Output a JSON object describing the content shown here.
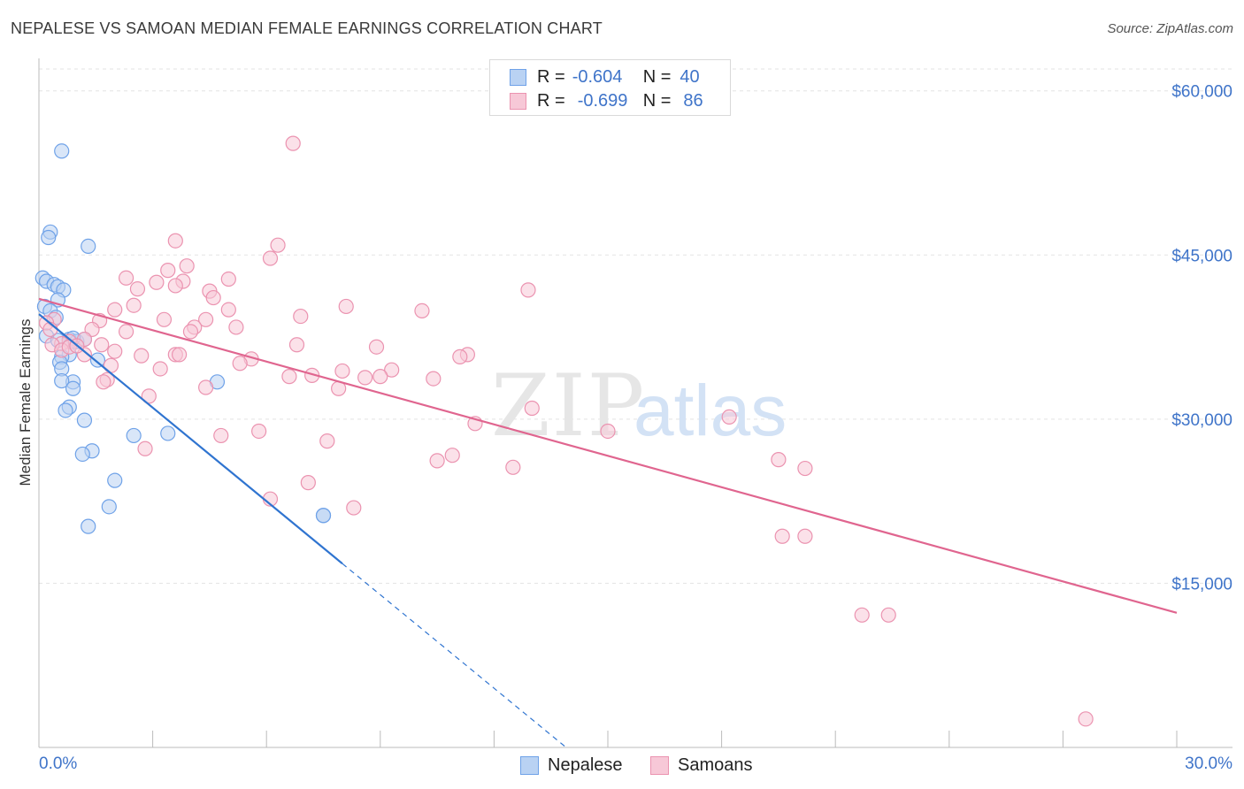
{
  "title": "NEPALESE VS SAMOAN MEDIAN FEMALE EARNINGS CORRELATION CHART",
  "source": "Source: ZipAtlas.com",
  "colors": {
    "nepalese": "#6fa2e8",
    "nepalese_fill": "#b9d2f3",
    "nepalese_line": "#2f74d0",
    "samoans": "#eb93b0",
    "samoans_fill": "#f7c8d7",
    "samoans_line": "#e0658f",
    "axis_text": "#3f74c9"
  },
  "legend": {
    "r_label": "R =",
    "n_label": "N =",
    "nepalese": {
      "r": "-0.604",
      "n": "40"
    },
    "samoans": {
      "r": "-0.699",
      "n": "86"
    }
  },
  "bottom_legend": {
    "nepalese": "Nepalese",
    "samoans": "Samoans"
  },
  "chart_data": {
    "type": "scatter",
    "title": "NEPALESE VS SAMOAN MEDIAN FEMALE EARNINGS CORRELATION CHART",
    "xlabel": "",
    "ylabel": "Median Female Earnings",
    "xlim": [
      0,
      30
    ],
    "ylim": [
      0,
      62000
    ],
    "x_tick_labels": {
      "0": "0.0%",
      "30": "30.0%"
    },
    "y_ticks": [
      15000,
      30000,
      45000,
      60000
    ],
    "y_tick_labels": [
      "$15,000",
      "$30,000",
      "$45,000",
      "$60,000"
    ],
    "grid": true,
    "legend_position": "top-center",
    "series": [
      {
        "name": "Nepalese",
        "points": [
          [
            0.6,
            54500
          ],
          [
            0.3,
            47100
          ],
          [
            0.25,
            46600
          ],
          [
            1.3,
            45800
          ],
          [
            0.1,
            42900
          ],
          [
            0.2,
            42600
          ],
          [
            0.4,
            42300
          ],
          [
            0.5,
            42100
          ],
          [
            0.65,
            41800
          ],
          [
            0.5,
            40900
          ],
          [
            0.15,
            40300
          ],
          [
            0.3,
            39900
          ],
          [
            0.45,
            39300
          ],
          [
            0.2,
            37600
          ],
          [
            0.5,
            37200
          ],
          [
            0.8,
            37300
          ],
          [
            1.0,
            37100
          ],
          [
            1.2,
            37300
          ],
          [
            0.8,
            35900
          ],
          [
            0.6,
            35700
          ],
          [
            0.55,
            35200
          ],
          [
            1.55,
            35400
          ],
          [
            0.6,
            34600
          ],
          [
            0.9,
            33400
          ],
          [
            0.6,
            33500
          ],
          [
            4.7,
            33400
          ],
          [
            0.9,
            32800
          ],
          [
            0.8,
            31100
          ],
          [
            0.7,
            30800
          ],
          [
            1.2,
            29900
          ],
          [
            2.5,
            28500
          ],
          [
            3.4,
            28700
          ],
          [
            1.4,
            27100
          ],
          [
            1.15,
            26800
          ],
          [
            2.0,
            24400
          ],
          [
            1.85,
            22000
          ],
          [
            1.3,
            20200
          ],
          [
            7.5,
            21200
          ],
          [
            7.5,
            21200
          ],
          [
            0.9,
            37400
          ]
        ],
        "trend": {
          "x": [
            0,
            8.0
          ],
          "y": [
            39600,
            16800
          ]
        },
        "trend_dashed": {
          "x": [
            8.0,
            13.9
          ],
          "y": [
            16800,
            0
          ]
        }
      },
      {
        "name": "Samoans",
        "points": [
          [
            6.7,
            55200
          ],
          [
            3.6,
            46300
          ],
          [
            6.3,
            45900
          ],
          [
            6.1,
            44700
          ],
          [
            3.9,
            44000
          ],
          [
            3.4,
            43600
          ],
          [
            2.3,
            42900
          ],
          [
            5.0,
            42800
          ],
          [
            3.8,
            42600
          ],
          [
            3.1,
            42500
          ],
          [
            3.6,
            42200
          ],
          [
            4.5,
            41700
          ],
          [
            12.9,
            41800
          ],
          [
            2.6,
            41900
          ],
          [
            4.6,
            41100
          ],
          [
            2.5,
            40400
          ],
          [
            8.1,
            40300
          ],
          [
            5.0,
            40000
          ],
          [
            10.1,
            39900
          ],
          [
            2.0,
            40000
          ],
          [
            6.9,
            39400
          ],
          [
            3.3,
            39100
          ],
          [
            1.6,
            39000
          ],
          [
            4.4,
            39100
          ],
          [
            0.4,
            39100
          ],
          [
            0.2,
            38800
          ],
          [
            5.2,
            38400
          ],
          [
            4.1,
            38400
          ],
          [
            0.3,
            38200
          ],
          [
            2.3,
            38000
          ],
          [
            4.0,
            38000
          ],
          [
            1.4,
            38200
          ],
          [
            1.2,
            37300
          ],
          [
            0.8,
            37100
          ],
          [
            0.6,
            36900
          ],
          [
            1.65,
            36800
          ],
          [
            6.8,
            36800
          ],
          [
            8.9,
            36600
          ],
          [
            0.35,
            36800
          ],
          [
            0.6,
            36300
          ],
          [
            2.0,
            36200
          ],
          [
            3.6,
            35900
          ],
          [
            1.2,
            35900
          ],
          [
            2.7,
            35800
          ],
          [
            11.3,
            35900
          ],
          [
            11.1,
            35700
          ],
          [
            5.6,
            35500
          ],
          [
            5.3,
            35100
          ],
          [
            1.9,
            34900
          ],
          [
            3.2,
            34600
          ],
          [
            8.0,
            34400
          ],
          [
            9.3,
            34500
          ],
          [
            7.2,
            34000
          ],
          [
            6.6,
            33900
          ],
          [
            8.6,
            33800
          ],
          [
            9.0,
            33900
          ],
          [
            10.4,
            33700
          ],
          [
            1.8,
            33600
          ],
          [
            1.7,
            33400
          ],
          [
            4.4,
            32900
          ],
          [
            7.9,
            32800
          ],
          [
            2.9,
            32100
          ],
          [
            13.0,
            31000
          ],
          [
            11.5,
            29600
          ],
          [
            18.2,
            30200
          ],
          [
            15.0,
            28900
          ],
          [
            5.8,
            28900
          ],
          [
            4.8,
            28500
          ],
          [
            7.6,
            28000
          ],
          [
            2.8,
            27300
          ],
          [
            10.9,
            26700
          ],
          [
            10.5,
            26200
          ],
          [
            12.5,
            25600
          ],
          [
            19.5,
            26300
          ],
          [
            20.2,
            25500
          ],
          [
            7.1,
            24200
          ],
          [
            6.1,
            22700
          ],
          [
            8.3,
            21900
          ],
          [
            19.6,
            19300
          ],
          [
            20.2,
            19300
          ],
          [
            21.7,
            12100
          ],
          [
            22.4,
            12100
          ],
          [
            27.6,
            2600
          ],
          [
            0.8,
            36600
          ],
          [
            1.0,
            36700
          ],
          [
            3.7,
            35900
          ]
        ],
        "trend": {
          "x": [
            0,
            30
          ],
          "y": [
            41000,
            12300
          ]
        }
      }
    ]
  }
}
